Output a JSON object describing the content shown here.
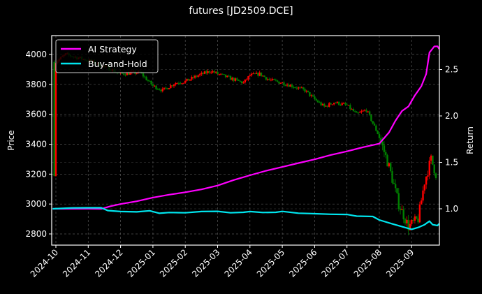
{
  "chart_data": {
    "type": "line",
    "title": "futures [JD2509.DCE]",
    "xlabel": "",
    "ylabel": "Price",
    "y2label": "Return",
    "ylim": [
      2730,
      4120
    ],
    "y2lim": [
      0.62,
      2.85
    ],
    "grid": true,
    "legend_position": "upper left",
    "x_ticks": [
      "2024-10",
      "2024-11",
      "2024-12",
      "2025-01",
      "2025-02",
      "2025-03",
      "2025-04",
      "2025-05",
      "2025-06",
      "2025-07",
      "2025-08",
      "2025-09"
    ],
    "y_ticks": [
      2800,
      3000,
      3200,
      3400,
      3600,
      3800,
      4000
    ],
    "y2_ticks": [
      "1.0",
      "1.5",
      "2.0",
      "2.5"
    ],
    "x_range_months": [
      -0.1,
      11.85
    ],
    "candles": {
      "description": "daily OHLC candlesticks; red = up, green = down",
      "up_color": "#ff0000",
      "down_color": "#008000",
      "close_path_monthly": [
        {
          "month": 0.0,
          "price": 3950
        },
        {
          "month": 0.3,
          "price": 4000
        },
        {
          "month": 1.0,
          "price": 3960
        },
        {
          "month": 1.5,
          "price": 3920
        },
        {
          "month": 2.0,
          "price": 3870
        },
        {
          "month": 2.6,
          "price": 3880
        },
        {
          "month": 3.0,
          "price": 3790
        },
        {
          "month": 3.3,
          "price": 3760
        },
        {
          "month": 3.7,
          "price": 3810
        },
        {
          "month": 4.0,
          "price": 3820
        },
        {
          "month": 4.4,
          "price": 3860
        },
        {
          "month": 4.8,
          "price": 3890
        },
        {
          "month": 5.0,
          "price": 3870
        },
        {
          "month": 5.4,
          "price": 3840
        },
        {
          "month": 5.8,
          "price": 3810
        },
        {
          "month": 6.0,
          "price": 3860
        },
        {
          "month": 6.3,
          "price": 3870
        },
        {
          "month": 6.6,
          "price": 3830
        },
        {
          "month": 7.0,
          "price": 3810
        },
        {
          "month": 7.3,
          "price": 3790
        },
        {
          "month": 7.7,
          "price": 3760
        },
        {
          "month": 8.0,
          "price": 3700
        },
        {
          "month": 8.3,
          "price": 3650
        },
        {
          "month": 8.6,
          "price": 3680
        },
        {
          "month": 9.0,
          "price": 3660
        },
        {
          "month": 9.3,
          "price": 3600
        },
        {
          "month": 9.6,
          "price": 3630
        },
        {
          "month": 10.0,
          "price": 3450
        },
        {
          "month": 10.3,
          "price": 3250
        },
        {
          "month": 10.6,
          "price": 3000
        },
        {
          "month": 10.9,
          "price": 2850
        },
        {
          "month": 11.2,
          "price": 2900
        },
        {
          "month": 11.4,
          "price": 3150
        },
        {
          "month": 11.6,
          "price": 3300
        },
        {
          "month": 11.75,
          "price": 3200
        }
      ]
    },
    "series": [
      {
        "name": "AI Strategy",
        "color": "#ff00ff",
        "axis": "right",
        "points": [
          [
            -0.1,
            1.0
          ],
          [
            1.0,
            1.0
          ],
          [
            1.4,
            1.0
          ],
          [
            1.7,
            1.03
          ],
          [
            2.0,
            1.05
          ],
          [
            2.5,
            1.08
          ],
          [
            3.0,
            1.12
          ],
          [
            3.5,
            1.15
          ],
          [
            4.0,
            1.18
          ],
          [
            4.5,
            1.21
          ],
          [
            5.0,
            1.25
          ],
          [
            5.5,
            1.31
          ],
          [
            6.0,
            1.36
          ],
          [
            6.5,
            1.41
          ],
          [
            7.0,
            1.45
          ],
          [
            7.5,
            1.49
          ],
          [
            8.0,
            1.53
          ],
          [
            8.5,
            1.58
          ],
          [
            9.0,
            1.62
          ],
          [
            9.5,
            1.66
          ],
          [
            10.0,
            1.7
          ],
          [
            10.3,
            1.82
          ],
          [
            10.5,
            1.95
          ],
          [
            10.7,
            2.05
          ],
          [
            10.9,
            2.1
          ],
          [
            11.1,
            2.22
          ],
          [
            11.3,
            2.32
          ],
          [
            11.45,
            2.45
          ],
          [
            11.55,
            2.68
          ],
          [
            11.7,
            2.75
          ],
          [
            11.8,
            2.75
          ],
          [
            11.85,
            2.72
          ]
        ]
      },
      {
        "name": "Buy-and-Hold",
        "color": "#00e5ee",
        "axis": "right",
        "points": [
          [
            -0.1,
            1.0
          ],
          [
            0.5,
            1.01
          ],
          [
            1.0,
            1.01
          ],
          [
            1.4,
            1.01
          ],
          [
            1.6,
            0.98
          ],
          [
            2.0,
            0.97
          ],
          [
            2.5,
            0.97
          ],
          [
            2.9,
            0.98
          ],
          [
            3.2,
            0.95
          ],
          [
            3.5,
            0.96
          ],
          [
            4.0,
            0.96
          ],
          [
            4.5,
            0.97
          ],
          [
            5.0,
            0.97
          ],
          [
            5.4,
            0.96
          ],
          [
            5.8,
            0.96
          ],
          [
            6.0,
            0.97
          ],
          [
            6.4,
            0.96
          ],
          [
            6.8,
            0.96
          ],
          [
            7.0,
            0.97
          ],
          [
            7.5,
            0.95
          ],
          [
            8.0,
            0.95
          ],
          [
            8.5,
            0.94
          ],
          [
            9.0,
            0.94
          ],
          [
            9.3,
            0.92
          ],
          [
            9.8,
            0.92
          ],
          [
            10.0,
            0.88
          ],
          [
            10.4,
            0.84
          ],
          [
            10.8,
            0.8
          ],
          [
            11.0,
            0.78
          ],
          [
            11.2,
            0.8
          ],
          [
            11.4,
            0.83
          ],
          [
            11.55,
            0.87
          ],
          [
            11.65,
            0.83
          ],
          [
            11.8,
            0.82
          ],
          [
            11.85,
            0.84
          ]
        ]
      }
    ]
  },
  "legend": {
    "items": [
      {
        "label": "AI Strategy",
        "color": "#ff00ff"
      },
      {
        "label": "Buy-and-Hold",
        "color": "#00e5ee"
      }
    ]
  }
}
